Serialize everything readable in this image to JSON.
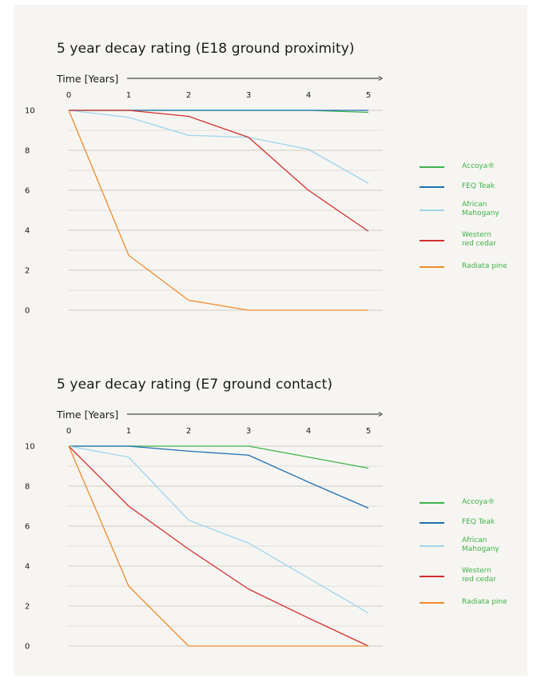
{
  "legend": [
    {
      "label": "Accoya®",
      "color": "#3cb34a"
    },
    {
      "label": "FEQ Teak",
      "color": "#1f6fb5"
    },
    {
      "label": "African\nMahogany",
      "color": "#9fd4ee"
    },
    {
      "label": "Western\nred cedar",
      "color": "#d32f2f"
    },
    {
      "label": "Radiata pine",
      "color": "#ef8b2c"
    }
  ],
  "chart_data": [
    {
      "type": "line",
      "title": "5 year decay rating (E18 ground proximity)",
      "xlabel": "Time [Years]",
      "ylabel": "",
      "x": [
        0,
        1,
        2,
        3,
        4,
        5
      ],
      "xlim": [
        0,
        5
      ],
      "ylim": [
        0,
        10
      ],
      "x_ticks": [
        "0",
        "1",
        "2",
        "3",
        "4",
        "5"
      ],
      "y_ticks": [
        "0",
        "2",
        "4",
        "6",
        "8",
        "10"
      ],
      "x_axis_position": "top",
      "grid": true,
      "legend_position": "right",
      "series": [
        {
          "name": "Accoya®",
          "color": "#3cb34a",
          "values": [
            10,
            10,
            10,
            10,
            10,
            9.9
          ]
        },
        {
          "name": "FEQ Teak",
          "color": "#1f6fb5",
          "values": [
            10,
            10,
            10,
            10,
            10,
            10
          ]
        },
        {
          "name": "African Mahogany",
          "color": "#9fd4ee",
          "values": [
            10,
            9.65,
            8.75,
            8.65,
            8.05,
            6.35
          ]
        },
        {
          "name": "Western red cedar",
          "color": "#d32f2f",
          "values": [
            10,
            10,
            9.7,
            8.65,
            6.0,
            3.95
          ]
        },
        {
          "name": "Radiata pine",
          "color": "#ef8b2c",
          "values": [
            10,
            2.75,
            0.5,
            0,
            0,
            0
          ]
        }
      ]
    },
    {
      "type": "line",
      "title": "5 year decay rating (E7 ground contact)",
      "xlabel": "Time [Years]",
      "ylabel": "",
      "x": [
        0,
        1,
        2,
        3,
        4,
        5
      ],
      "xlim": [
        0,
        5
      ],
      "ylim": [
        0,
        10
      ],
      "x_ticks": [
        "0",
        "1",
        "2",
        "3",
        "4",
        "5"
      ],
      "y_ticks": [
        "0",
        "2",
        "4",
        "6",
        "8",
        "10"
      ],
      "x_axis_position": "top",
      "grid": true,
      "legend_position": "right",
      "series": [
        {
          "name": "Accoya®",
          "color": "#3cb34a",
          "values": [
            10,
            10,
            10,
            10,
            9.45,
            8.9
          ]
        },
        {
          "name": "FEQ Teak",
          "color": "#1f6fb5",
          "values": [
            10,
            10,
            9.75,
            9.55,
            8.2,
            6.9
          ]
        },
        {
          "name": "African Mahogany",
          "color": "#9fd4ee",
          "values": [
            10,
            9.45,
            6.3,
            5.15,
            3.4,
            1.65
          ]
        },
        {
          "name": "Western red cedar",
          "color": "#d32f2f",
          "values": [
            10,
            7.0,
            4.85,
            2.85,
            1.4,
            0
          ]
        },
        {
          "name": "Radiata pine",
          "color": "#ef8b2c",
          "values": [
            10,
            3.0,
            0,
            0,
            0,
            0
          ]
        }
      ]
    }
  ]
}
